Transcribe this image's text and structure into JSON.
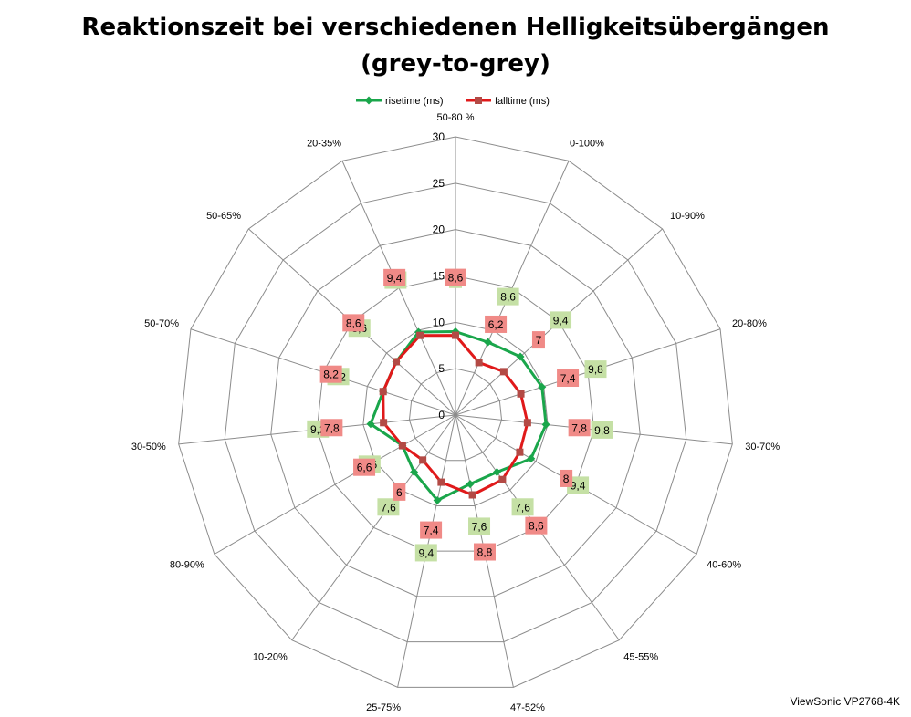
{
  "chart_data": {
    "type": "radar",
    "title_line1": "Reaktionszeit bei verschiedenen Helligkeitsübergängen",
    "title_line2": "(grey-to-grey)",
    "categories": [
      "50-80 %",
      "0-100%",
      "10-90%",
      "20-80%",
      "30-70%",
      "40-60%",
      "45-55%",
      "47-52%",
      "25-75%",
      "10-20%",
      "80-90%",
      "30-50%",
      "50-70%",
      "50-65%",
      "20-35%"
    ],
    "radial_axis": {
      "min": 0,
      "max": 30,
      "ticks": [
        0,
        5,
        10,
        15,
        20,
        25,
        30
      ]
    },
    "series": [
      {
        "name": "risetime (ms)",
        "color": "#1aa64b",
        "label_bg": "#c5e0a5",
        "values": [
          9,
          8.6,
          9.4,
          9.8,
          9.8,
          9.4,
          7.6,
          7.6,
          9.4,
          7.6,
          6.6,
          9.2,
          8.2,
          8.6,
          9.8
        ],
        "labels": [
          "9",
          "8,6",
          "9,4",
          "9,8",
          "9,8",
          "9,4",
          "7,6",
          "7,6",
          "9,4",
          "7,6",
          "6,6",
          "9,2",
          "8,2",
          "8,6",
          "9,8"
        ]
      },
      {
        "name": "falltime (ms)",
        "color": "#e0191a",
        "label_bg": "#f08a87",
        "values": [
          8.6,
          6.2,
          7,
          7.4,
          7.8,
          8,
          8.6,
          8.8,
          7.4,
          6,
          6.6,
          7.8,
          8.2,
          8.6,
          9.4
        ],
        "labels": [
          "8,6",
          "6,2",
          "7",
          "7,4",
          "7,8",
          "8",
          "8,6",
          "8,8",
          "7,4",
          "6",
          "6,6",
          "7,8",
          "8,2",
          "8,6",
          "9,4"
        ]
      }
    ],
    "legend_position": "top",
    "grid": true
  },
  "watermark": "ViewSonic VP2768-4K"
}
